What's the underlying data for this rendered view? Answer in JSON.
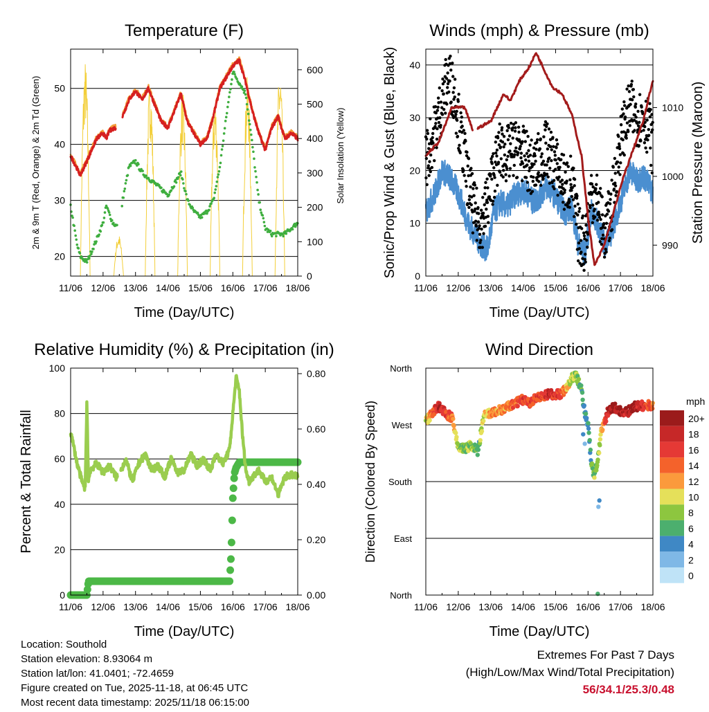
{
  "panels": {
    "temperature": {
      "title": "Temperature (F)",
      "xlabel": "Time (Day/UTC)",
      "ylabel_left": "2m & 9m T (Red, Orange) & 2m Td (Green)",
      "ylabel_right": "Solar Insolation (Yellow)",
      "x_ticks": [
        "11/06",
        "12/06",
        "13/06",
        "14/06",
        "15/06",
        "16/06",
        "17/06",
        "18/06"
      ],
      "yleft_ticks": [
        20,
        30,
        40,
        50
      ],
      "yright_ticks": [
        0,
        100,
        200,
        300,
        400,
        500,
        600
      ]
    },
    "winds": {
      "title": "Winds (mph) & Pressure (mb)",
      "xlabel": "Time (Day/UTC)",
      "ylabel_left": "Sonic/Prop Wind & Gust (Blue, Black)",
      "ylabel_right": "Station Pressure (Maroon)",
      "x_ticks": [
        "11/06",
        "12/06",
        "13/06",
        "14/06",
        "15/06",
        "16/06",
        "17/06",
        "18/06"
      ],
      "yleft_ticks": [
        0,
        10,
        20,
        30,
        40
      ],
      "yright_ticks": [
        990,
        1000,
        1010
      ]
    },
    "humidity": {
      "title": "Relative Humidity (%) & Precipitation (in)",
      "xlabel": "Time (Day/UTC)",
      "ylabel_left": "Percent & Total Rainfall",
      "x_ticks": [
        "11/06",
        "12/06",
        "13/06",
        "14/06",
        "15/06",
        "16/06",
        "17/06",
        "18/06"
      ],
      "yleft_ticks": [
        0,
        20,
        40,
        60,
        80,
        100
      ],
      "yright_ticks": [
        "0.00",
        "0.20",
        "0.40",
        "0.60",
        "0.80"
      ]
    },
    "direction": {
      "title": "Wind Direction",
      "xlabel": "Time (Day/UTC)",
      "ylabel_left": "Direction (Colored By Speed)",
      "x_ticks": [
        "11/06",
        "12/06",
        "13/06",
        "14/06",
        "15/06",
        "16/06",
        "17/06",
        "18/06"
      ],
      "y_ticks": [
        "North",
        "West",
        "South",
        "East",
        "North"
      ],
      "legend_title": "mph",
      "legend_labels": [
        "20+",
        "18",
        "16",
        "14",
        "12",
        "10",
        "8",
        "6",
        "4",
        "2",
        "0"
      ],
      "legend_colors": [
        "#9b1b1b",
        "#c62828",
        "#e53935",
        "#f4622b",
        "#fb9a3c",
        "#e5e05a",
        "#8dc63f",
        "#4caf6e",
        "#3f88c5",
        "#7fb8e6",
        "#bfe3f7"
      ]
    }
  },
  "chart_data": [
    {
      "type": "line",
      "title": "Temperature (F)",
      "xlabel": "Time (Day/UTC)",
      "ylabel": "2m & 9m T (Red, Orange) & 2m Td (Green)",
      "ylim": [
        16.5,
        57
      ],
      "y2lim": [
        0,
        660
      ],
      "x_unit": "days since 11/06 00 UTC",
      "series": [
        {
          "name": "2m/9m Temperature",
          "color": "#d62020",
          "axis": "left",
          "x": [
            0,
            0.3,
            0.5,
            0.8,
            1,
            1.1,
            1.2,
            1.4,
            1.5,
            1.6,
            1.8,
            2.0,
            2.2,
            2.4,
            2.6,
            2.8,
            3.0,
            3.2,
            3.4,
            3.6,
            3.8,
            4.0,
            4.2,
            4.4,
            4.6,
            4.8,
            5.0,
            5.2,
            5.4,
            5.6,
            5.8,
            6.0,
            6.2,
            6.4,
            6.6,
            6.8,
            7.0
          ],
          "y": [
            38,
            34.5,
            37,
            41,
            42,
            41,
            42.5,
            43,
            null,
            45,
            48,
            49.5,
            48,
            50,
            47,
            44,
            43,
            46,
            49,
            44,
            42,
            40,
            41,
            45,
            50,
            52,
            54,
            55,
            51,
            46,
            42,
            39,
            43,
            45,
            41,
            42,
            41
          ]
        },
        {
          "name": "2m Dewpoint",
          "color": "#3fae3f",
          "axis": "left",
          "x": [
            0,
            0.2,
            0.3,
            0.5,
            0.8,
            1,
            1.1,
            1.3,
            1.5,
            1.6,
            1.8,
            2.0,
            2.2,
            2.4,
            2.6,
            2.8,
            3.0,
            3.2,
            3.4,
            3.6,
            3.8,
            4.0,
            4.2,
            4.4,
            4.6,
            4.8,
            5.0,
            5.2,
            5.4,
            5.6,
            5.8,
            6.0,
            6.2,
            6.4,
            6.6,
            6.8,
            7.0
          ],
          "y": [
            29,
            22,
            20,
            19,
            23,
            26,
            29,
            26,
            25,
            30,
            36,
            37,
            35,
            34,
            33,
            32,
            31,
            33,
            35,
            30,
            28,
            27,
            28,
            30,
            36,
            45,
            53,
            51,
            49,
            40,
            30,
            25,
            24,
            24,
            24,
            25,
            26
          ]
        },
        {
          "name": "Solar Insolation",
          "color": "#f3cf3a",
          "axis": "right",
          "peaks_x": [
            0.45,
            1.48,
            2.45,
            3.45,
            4.45,
            5.45,
            6.45
          ],
          "peaks_y": [
            630,
            120,
            570,
            540,
            520,
            580,
            610
          ]
        }
      ]
    },
    {
      "type": "line",
      "title": "Winds (mph) & Pressure (mb)",
      "xlabel": "Time (Day/UTC)",
      "ylabel": "Sonic/Prop Wind & Gust (Blue, Black)",
      "ylim": [
        0,
        43
      ],
      "y2lim": [
        985.5,
        1018.5
      ],
      "series": [
        {
          "name": "Sonic/Prop Wind",
          "color": "#4b8fd0",
          "axis": "left",
          "x": [
            0,
            0.3,
            0.5,
            0.7,
            0.9,
            1.1,
            1.3,
            1.5,
            1.7,
            1.9,
            2.1,
            2.3,
            2.5,
            2.7,
            2.9,
            3.1,
            3.3,
            3.5,
            3.7,
            3.9,
            4.1,
            4.3,
            4.5,
            4.7,
            4.9,
            5.1,
            5.3,
            5.5,
            5.7,
            5.9,
            6.1,
            6.3,
            6.5,
            6.7,
            6.9,
            7.0
          ],
          "y": [
            12,
            16,
            20,
            19,
            17,
            14,
            10,
            8,
            6,
            5,
            12,
            14,
            13,
            15,
            16,
            16,
            14,
            15,
            17,
            16,
            14,
            12,
            13,
            6,
            4,
            12,
            10,
            6,
            8,
            12,
            16,
            20,
            18,
            19,
            17,
            16
          ]
        },
        {
          "name": "Gust",
          "color": "#000000",
          "axis": "left",
          "x": [
            0,
            0.3,
            0.5,
            0.7,
            0.9,
            1.1,
            1.3,
            1.5,
            1.7,
            1.9,
            2.1,
            2.3,
            2.5,
            2.7,
            2.9,
            3.1,
            3.3,
            3.5,
            3.7,
            3.9,
            4.1,
            4.3,
            4.5,
            4.7,
            4.9,
            5.1,
            5.3,
            5.5,
            5.7,
            5.9,
            6.1,
            6.3,
            6.5,
            6.7,
            6.9,
            7.0
          ],
          "y": [
            22,
            28,
            33,
            38,
            34,
            26,
            18,
            12,
            10,
            14,
            20,
            24,
            23,
            24,
            24,
            22,
            20,
            22,
            24,
            22,
            20,
            17,
            18,
            8,
            6,
            16,
            14,
            8,
            12,
            22,
            28,
            32,
            30,
            30,
            28,
            24
          ]
        },
        {
          "name": "Station Pressure",
          "color": "#a31b1b",
          "axis": "right",
          "x": [
            0,
            0.4,
            0.8,
            1.2,
            1.5,
            1.6,
            2.0,
            2.4,
            2.6,
            2.9,
            3.2,
            3.4,
            3.6,
            3.9,
            4.2,
            4.5,
            4.8,
            5.0,
            5.2,
            5.5,
            5.8,
            6.1,
            6.4,
            6.7,
            7.0
          ],
          "y": [
            1003,
            1005,
            1010,
            1010,
            1006,
            1007,
            1008,
            1012,
            1011,
            1014,
            1016,
            1018,
            1016,
            1013,
            1012,
            1009,
            1003,
            994,
            987,
            990,
            995,
            1000,
            1004,
            1008,
            1014
          ]
        }
      ]
    },
    {
      "type": "line",
      "title": "Relative Humidity (%) & Precipitation (in)",
      "xlabel": "Time (Day/UTC)",
      "ylabel": "Percent & Total Rainfall",
      "ylim": [
        0,
        100
      ],
      "y2lim": [
        0,
        0.82
      ],
      "series": [
        {
          "name": "Relative Humidity",
          "color": "#9acd4f",
          "axis": "left",
          "x": [
            0,
            0.1,
            0.2,
            0.35,
            0.45,
            0.5,
            0.55,
            0.6,
            0.8,
            1.0,
            1.2,
            1.4,
            1.5,
            1.7,
            1.9,
            2.1,
            2.3,
            2.5,
            2.7,
            2.9,
            3.1,
            3.3,
            3.5,
            3.7,
            3.9,
            4.1,
            4.3,
            4.5,
            4.7,
            4.9,
            5.0,
            5.1,
            5.2,
            5.3,
            5.4,
            5.5,
            5.6,
            5.8,
            6.0,
            6.2,
            6.4,
            6.6,
            6.8,
            7.0
          ],
          "y": [
            72,
            65,
            58,
            50,
            47,
            85,
            50,
            55,
            58,
            54,
            57,
            52,
            53,
            60,
            50,
            58,
            62,
            55,
            57,
            52,
            60,
            54,
            55,
            62,
            57,
            60,
            55,
            62,
            58,
            64,
            80,
            96,
            90,
            70,
            55,
            50,
            52,
            55,
            50,
            52,
            44,
            52,
            53,
            52
          ]
        },
        {
          "name": "Total Precipitation",
          "color": "#4cb847",
          "axis": "right",
          "x": [
            0,
            0.5,
            0.55,
            1.0,
            2.0,
            3.0,
            4.0,
            4.9,
            4.95,
            5.0,
            5.05,
            5.1,
            5.2,
            7.0
          ],
          "y": [
            0,
            0,
            0.05,
            0.05,
            0.05,
            0.05,
            0.05,
            0.05,
            0.15,
            0.35,
            0.44,
            0.46,
            0.48,
            0.48
          ]
        }
      ]
    },
    {
      "type": "scatter",
      "title": "Wind Direction",
      "xlabel": "Time (Day/UTC)",
      "ylabel": "Direction (Colored By Speed)",
      "y_categories": [
        "North",
        "West",
        "South",
        "East",
        "North"
      ],
      "ylim_deg": [
        0,
        360
      ],
      "color_by": "speed (mph)",
      "x": [
        0,
        0.2,
        0.4,
        0.6,
        0.8,
        1.0,
        1.2,
        1.4,
        1.6,
        1.8,
        2.0,
        2.2,
        2.4,
        2.6,
        2.8,
        3.0,
        3.2,
        3.4,
        3.6,
        3.8,
        4.0,
        4.2,
        4.4,
        4.6,
        4.8,
        4.9,
        5.0,
        5.1,
        5.2,
        5.3,
        5.4,
        5.6,
        5.8,
        6.0,
        6.2,
        6.4,
        6.6,
        6.8,
        7.0
      ],
      "direction_deg": [
        275,
        290,
        300,
        288,
        282,
        235,
        232,
        238,
        228,
        285,
        288,
        292,
        295,
        300,
        305,
        310,
        305,
        312,
        315,
        320,
        318,
        320,
        335,
        352,
        325,
        290,
        270,
        210,
        188,
        215,
        255,
        290,
        298,
        292,
        290,
        298,
        300,
        300,
        302
      ],
      "speed_mph": [
        10,
        14,
        18,
        16,
        14,
        8,
        7,
        8,
        6,
        10,
        12,
        12,
        12,
        14,
        14,
        16,
        15,
        16,
        16,
        18,
        16,
        15,
        10,
        8,
        6,
        4,
        4,
        6,
        8,
        8,
        10,
        18,
        20,
        18,
        18,
        20,
        18,
        16,
        14
      ]
    }
  ],
  "footer": {
    "location": "Location: Southold",
    "elevation": "Station elevation: 8.93064 m",
    "latlon": "Station lat/lon: 41.0401; -72.4659",
    "created": "Figure created on Tue, 2025-11-18, at 06:45 UTC",
    "recent": "Most recent data timestamp: 2025/11/18 06:15:00"
  },
  "extremes": {
    "line1": "Extremes For Past 7 Days",
    "line2": "(High/Low/Max Wind/Total Precipitation)",
    "values": "56/34.1/25.3/0.48"
  }
}
